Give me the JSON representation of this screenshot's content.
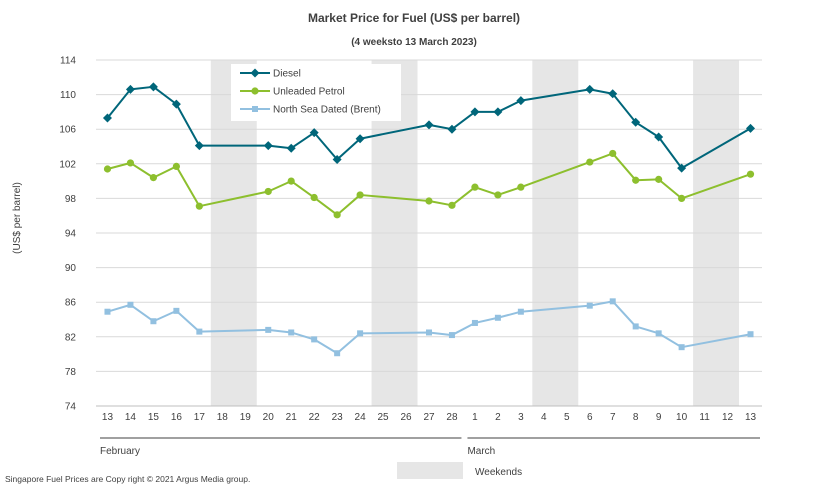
{
  "chart_data": {
    "type": "line",
    "title": "Market Price for Fuel (US$ per barrel)",
    "subtitle": "(4 weeksto 13 March 2023)",
    "ylabel": "(US$ per barrel)",
    "ylim": [
      74,
      114
    ],
    "yticks": [
      74,
      78,
      82,
      86,
      90,
      94,
      98,
      102,
      106,
      110,
      114
    ],
    "categories": [
      "13",
      "14",
      "15",
      "16",
      "17",
      "18",
      "19",
      "20",
      "21",
      "22",
      "23",
      "24",
      "25",
      "26",
      "27",
      "28",
      "1",
      "2",
      "3",
      "4",
      "5",
      "6",
      "7",
      "8",
      "9",
      "10",
      "11",
      "12",
      "13"
    ],
    "months": [
      {
        "label": "February",
        "start": 0,
        "end": 15
      },
      {
        "label": "March",
        "start": 16,
        "end": 28
      }
    ],
    "weekends": [
      [
        5,
        6
      ],
      [
        12,
        13
      ],
      [
        19,
        20
      ],
      [
        26,
        27
      ]
    ],
    "weekends_label": "Weekends",
    "series": [
      {
        "name": "Diesel",
        "color": "#00667a",
        "marker": "diamond",
        "values": [
          107.3,
          110.6,
          110.9,
          108.9,
          104.1,
          null,
          null,
          104.1,
          103.8,
          105.6,
          102.5,
          104.9,
          null,
          null,
          106.5,
          106.0,
          108.0,
          108.0,
          109.3,
          null,
          null,
          110.6,
          110.1,
          106.8,
          105.1,
          101.5,
          null,
          null,
          106.1
        ]
      },
      {
        "name": "Unleaded Petrol",
        "color": "#8dbf2e",
        "marker": "circle",
        "values": [
          101.4,
          102.1,
          100.4,
          101.7,
          97.1,
          null,
          null,
          98.8,
          100.0,
          98.1,
          96.1,
          98.4,
          null,
          null,
          97.7,
          97.2,
          99.3,
          98.4,
          99.3,
          null,
          null,
          102.2,
          103.2,
          100.1,
          100.2,
          98.0,
          null,
          null,
          100.8
        ]
      },
      {
        "name": "North Sea Dated (Brent)",
        "color": "#92c0e0",
        "marker": "square",
        "values": [
          84.9,
          85.7,
          83.8,
          85.0,
          82.6,
          null,
          null,
          82.8,
          82.5,
          81.7,
          80.1,
          82.4,
          null,
          null,
          82.5,
          82.2,
          83.6,
          84.2,
          84.9,
          null,
          null,
          85.6,
          86.1,
          83.2,
          82.4,
          80.8,
          null,
          null,
          82.3
        ]
      }
    ]
  },
  "footer": {
    "copyright": "Singapore  Fuel Prices are  Copy right © 2021 Argus Media  group."
  },
  "colors": {
    "weekend_band": "#e6e6e6",
    "grid": "#d9d9d9",
    "axis": "#404040"
  }
}
